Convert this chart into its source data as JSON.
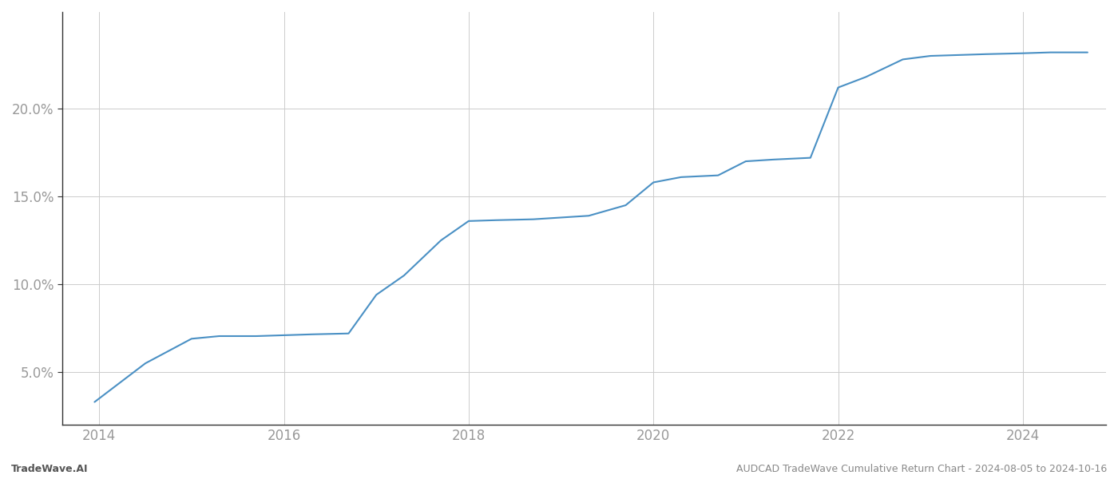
{
  "title": "AUDCAD TradeWave Cumulative Return Chart - 2024-08-05 to 2024-10-16",
  "watermark": "TradeWave.AI",
  "line_color": "#4a90c4",
  "background_color": "#ffffff",
  "grid_color": "#cccccc",
  "x_years": [
    2013.95,
    2014.5,
    2015.0,
    2015.3,
    2015.7,
    2016.0,
    2016.3,
    2016.7,
    2017.0,
    2017.3,
    2017.7,
    2018.0,
    2018.3,
    2018.7,
    2019.0,
    2019.3,
    2019.7,
    2020.0,
    2020.3,
    2020.7,
    2021.0,
    2021.3,
    2021.7,
    2022.0,
    2022.3,
    2022.7,
    2023.0,
    2023.3,
    2023.6,
    2024.0,
    2024.3,
    2024.7
  ],
  "y_values": [
    3.3,
    5.5,
    6.9,
    7.05,
    7.05,
    7.1,
    7.15,
    7.2,
    9.4,
    10.5,
    12.5,
    13.6,
    13.65,
    13.7,
    13.8,
    13.9,
    14.5,
    15.8,
    16.1,
    16.2,
    17.0,
    17.1,
    17.2,
    21.2,
    21.8,
    22.8,
    23.0,
    23.05,
    23.1,
    23.15,
    23.2,
    23.2
  ],
  "xlim": [
    2013.6,
    2024.9
  ],
  "ylim": [
    2.0,
    25.5
  ],
  "yticks": [
    5.0,
    10.0,
    15.0,
    20.0
  ],
  "xticks": [
    2014,
    2016,
    2018,
    2020,
    2022,
    2024
  ],
  "line_width": 1.5,
  "tick_fontsize": 12,
  "label_fontsize": 9,
  "title_fontsize": 10,
  "spine_color": "#333333",
  "tick_color": "#999999"
}
